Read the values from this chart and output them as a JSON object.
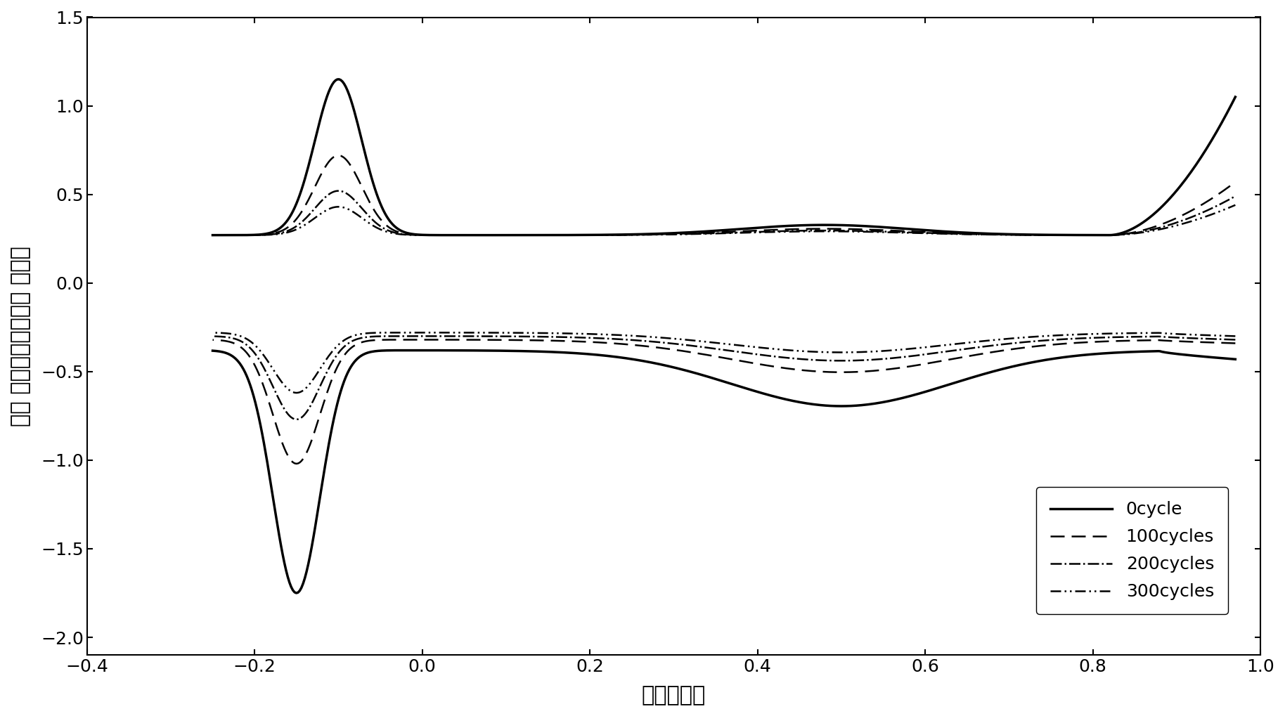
{
  "xlabel": "电势（伏）",
  "ylabel": "电流 密度（毫安／平方 厘米）",
  "xlim": [
    -0.4,
    1.0
  ],
  "ylim": [
    -2.1,
    1.5
  ],
  "xticks": [
    -0.4,
    -0.2,
    0.0,
    0.2,
    0.4,
    0.6,
    0.8,
    1.0
  ],
  "yticks": [
    -2.0,
    -1.5,
    -1.0,
    -0.5,
    0.0,
    0.5,
    1.0,
    1.5
  ],
  "legend_labels": [
    "0cycle",
    "100cycles",
    "200cycles",
    "300cycles"
  ],
  "legend_linestyles": [
    "-",
    "--",
    "-.",
    "-."
  ],
  "background_color": "#ffffff",
  "line_color": "#000000",
  "linewidth_main": 2.5,
  "linewidth_other": 1.8
}
